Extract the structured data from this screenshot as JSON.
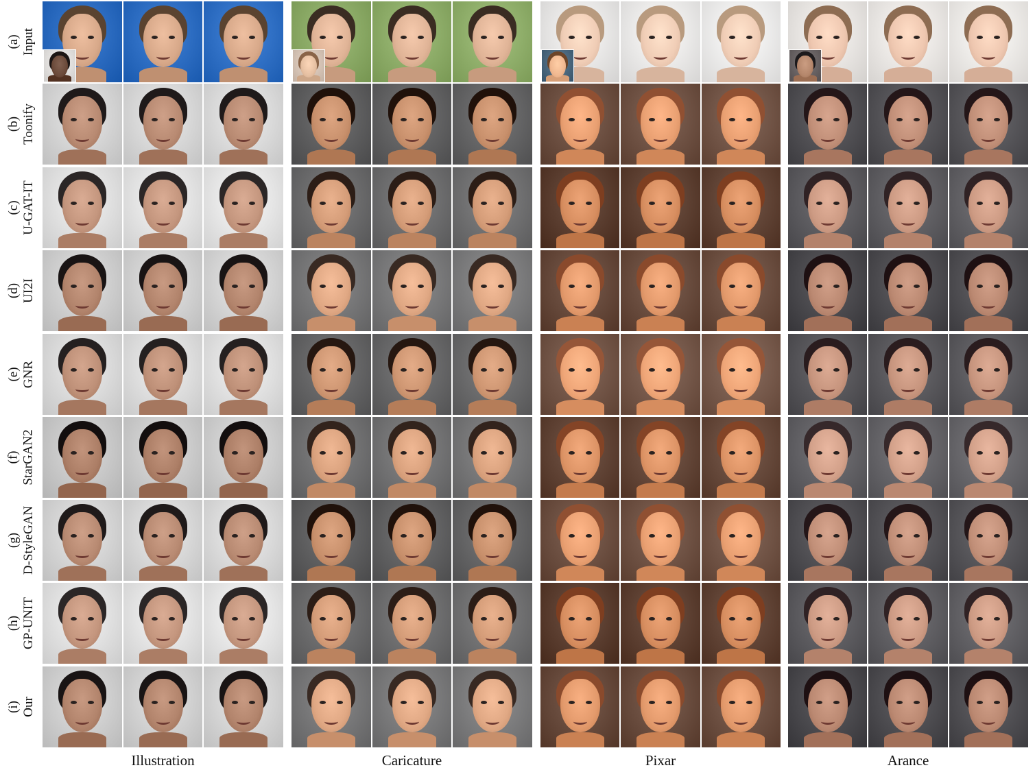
{
  "columns": [
    {
      "label": "Illustration"
    },
    {
      "label": "Caricature"
    },
    {
      "label": "Pixar"
    },
    {
      "label": "Arance"
    }
  ],
  "rows": [
    {
      "tag": "(a)",
      "name": "Input"
    },
    {
      "tag": "(b)",
      "name": "Toonify"
    },
    {
      "tag": "(c)",
      "name": "U-GAT-IT"
    },
    {
      "tag": "(d)",
      "name": "UI2I"
    },
    {
      "tag": "(e)",
      "name": "GNR"
    },
    {
      "tag": "(f)",
      "name": "StarGAN2"
    },
    {
      "tag": "(g)",
      "name": "D-StyleGAN"
    },
    {
      "tag": "(h)",
      "name": "GP-UNIT"
    },
    {
      "tag": "(i)",
      "name": "Our"
    }
  ],
  "palette": {
    "input_bg": [
      "#2f6fc4",
      "#8fae6a",
      "#ecebea",
      "#ece9e6"
    ],
    "input_skin": [
      "#d8a98a",
      "#e0b497",
      "#f0cdb6",
      "#eec7b0"
    ],
    "input_hair": [
      "#5a4330",
      "#3a2c22",
      "#b89a7e",
      "#8d6c52"
    ],
    "style_bg": [
      "#d9d9d9",
      "#6f6f70",
      "#6b4e40",
      "#5b5a5e"
    ],
    "style_skin": [
      "#b88a72",
      "#d49c78",
      "#e39a6c",
      "#c7957e"
    ],
    "style_hair": [
      "#1f1a1a",
      "#2c1d16",
      "#8a4a2c",
      "#2a1c1e"
    ],
    "ref_skin": [
      "#6b4a3a",
      "#e6c0a2",
      "#f0b890",
      "#b5876c"
    ],
    "ref_hair": [
      "#1c1615",
      "#8a6448",
      "#6d4528",
      "#1d1a1c"
    ],
    "ref_bg": [
      "#e4e2e0",
      "#d8c6b8",
      "#4d6a80",
      "#6b6566"
    ]
  }
}
